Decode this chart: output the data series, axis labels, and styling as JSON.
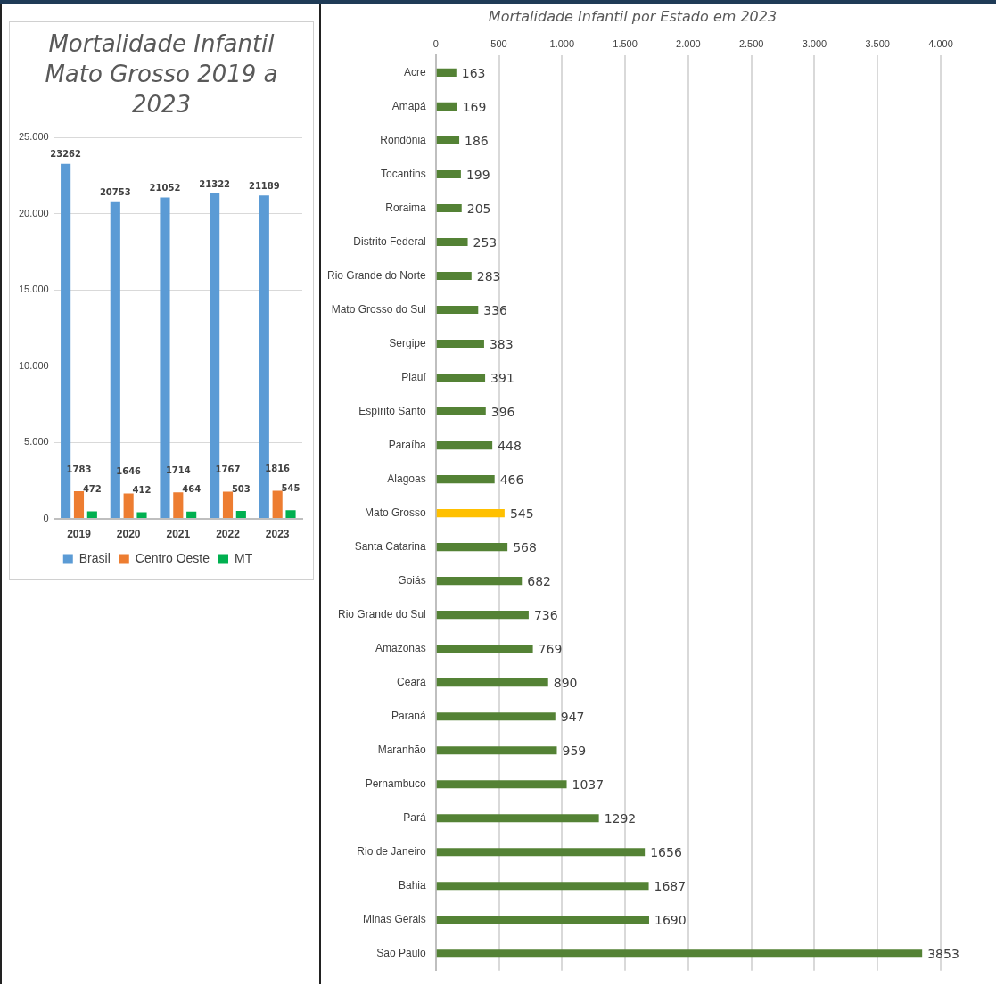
{
  "chart_data": [
    {
      "type": "bar",
      "title": "Mortalidade Infantil Mato Grosso  2019 a 2023",
      "categories": [
        "2019",
        "2020",
        "2021",
        "2022",
        "2023"
      ],
      "series": [
        {
          "name": "Brasil",
          "color": "#5b9bd5",
          "values": [
            23262,
            20753,
            21052,
            21322,
            21189
          ]
        },
        {
          "name": "Centro Oeste",
          "color": "#ed7d31",
          "values": [
            1783,
            1646,
            1714,
            1767,
            1816
          ]
        },
        {
          "name": "MT",
          "color": "#00b050",
          "values": [
            472,
            412,
            464,
            503,
            545
          ]
        }
      ],
      "ylim": [
        0,
        25000
      ],
      "yticks": [
        0,
        {
          "value": 5000,
          "label": "5.000"
        },
        {
          "value": 10000,
          "label": "10.000"
        },
        {
          "value": 15000,
          "label": "15.000"
        },
        {
          "value": 20000,
          "label": "20.000"
        },
        {
          "value": 25000,
          "label": "25.000"
        }
      ],
      "grid": "y",
      "legend": "bottom",
      "data_labels": true
    },
    {
      "type": "bar",
      "orientation": "horizontal",
      "title": "Mortalidade Infantil por Estado em 2023",
      "categories": [
        "Acre",
        "Amapá",
        "Rondônia",
        "Tocantins",
        "Roraima",
        "Distrito Federal",
        "Rio Grande do Norte",
        "Mato Grosso do Sul",
        "Sergipe",
        "Piauí",
        "Espírito Santo",
        "Paraíba",
        "Alagoas",
        "Mato Grosso",
        "Santa Catarina",
        "Goiás",
        "Rio Grande do Sul",
        "Amazonas",
        "Ceará",
        "Paraná",
        "Maranhão",
        "Pernambuco",
        "Pará",
        "Rio de Janeiro",
        "Bahia",
        "Minas Gerais",
        "São Paulo"
      ],
      "values": [
        163,
        169,
        186,
        199,
        205,
        253,
        283,
        336,
        383,
        391,
        396,
        448,
        466,
        545,
        568,
        682,
        736,
        769,
        890,
        947,
        959,
        1037,
        1292,
        1656,
        1687,
        1690,
        3853
      ],
      "colors": [
        "#548235",
        "#548235",
        "#548235",
        "#548235",
        "#548235",
        "#548235",
        "#548235",
        "#548235",
        "#548235",
        "#548235",
        "#548235",
        "#548235",
        "#548235",
        "#ffc000",
        "#548235",
        "#548235",
        "#548235",
        "#548235",
        "#548235",
        "#548235",
        "#548235",
        "#548235",
        "#548235",
        "#548235",
        "#548235",
        "#548235",
        "#548235"
      ],
      "xlim": [
        0,
        4000
      ],
      "xticks": [
        0,
        500,
        {
          "value": 1000,
          "label": "1.000"
        },
        {
          "value": 1500,
          "label": "1.500"
        },
        {
          "value": 2000,
          "label": "2.000"
        },
        {
          "value": 2500,
          "label": "2.500"
        },
        {
          "value": 3000,
          "label": "3.000"
        },
        {
          "value": 3500,
          "label": "3.500"
        },
        {
          "value": 4000,
          "label": "4.000"
        }
      ],
      "grid": "x",
      "data_labels": true
    }
  ]
}
